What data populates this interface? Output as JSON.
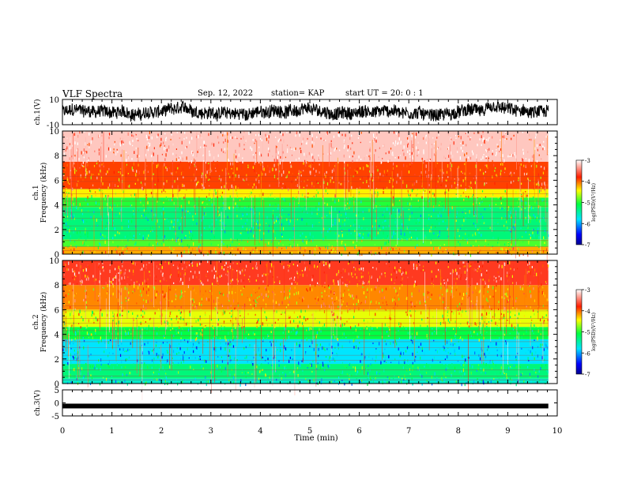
{
  "header": {
    "title": "VLF Spectra",
    "date": "Sep. 12, 2022",
    "station": "station= KAP",
    "start": "start UT =  20: 0  : 1"
  },
  "chart_data": {
    "type": "spectrogram",
    "x_axis": {
      "label": "Time (min)",
      "range": [
        0,
        10
      ],
      "ticks": [
        "0",
        "1",
        "2",
        "3",
        "4",
        "5",
        "6",
        "7",
        "8",
        "9",
        "10"
      ]
    },
    "panels": [
      {
        "kind": "waveform",
        "ylabel": "ch.1(V)",
        "ylim": [
          -10,
          10
        ],
        "tick_labels": [
          "10",
          "-10"
        ],
        "data_end_min": 9.82
      },
      {
        "kind": "spectrogram",
        "ylabel_channel": "ch.1",
        "ylabel": "Frequency (kHz)",
        "ylim": [
          0,
          10
        ],
        "tick_labels": [
          "0",
          "2",
          "4",
          "6",
          "8",
          "10"
        ],
        "data_end_min": 9.82,
        "colorbar": {
          "label": "log(PSD)(V²/Hz)",
          "range": [
            -7,
            -3
          ],
          "tick_labels": [
            "-3",
            "-4",
            "-5",
            "-6",
            "-7"
          ]
        },
        "bands_kHz_log_psd": [
          {
            "from": 0.0,
            "to": 0.6,
            "v": -4.2
          },
          {
            "from": 0.6,
            "to": 1.2,
            "v": -4.9
          },
          {
            "from": 1.2,
            "to": 3.8,
            "v": -5.3
          },
          {
            "from": 3.8,
            "to": 4.6,
            "v": -5.0
          },
          {
            "from": 4.6,
            "to": 5.3,
            "v": -4.4
          },
          {
            "from": 5.3,
            "to": 7.5,
            "v": -3.9
          },
          {
            "from": 7.5,
            "to": 10.0,
            "v": -3.2
          }
        ]
      },
      {
        "kind": "spectrogram",
        "ylabel_channel": "ch.2",
        "ylabel": "Frequency (kHz)",
        "ylim": [
          0,
          10
        ],
        "tick_labels": [
          "0",
          "2",
          "4",
          "6",
          "8",
          "10"
        ],
        "data_end_min": 9.82,
        "colorbar": {
          "label": "log(PSD)(V²/Hz)",
          "range": [
            -7,
            -3
          ],
          "tick_labels": [
            "-3",
            "-4",
            "-5",
            "-6",
            "-7"
          ]
        },
        "bands_kHz_log_psd": [
          {
            "from": 0.0,
            "to": 0.4,
            "v": -5.6
          },
          {
            "from": 0.4,
            "to": 1.6,
            "v": -5.3
          },
          {
            "from": 1.6,
            "to": 3.6,
            "v": -5.8
          },
          {
            "from": 3.6,
            "to": 4.6,
            "v": -5.1
          },
          {
            "from": 4.6,
            "to": 6.0,
            "v": -4.5
          },
          {
            "from": 6.0,
            "to": 8.0,
            "v": -4.1
          },
          {
            "from": 8.0,
            "to": 10.0,
            "v": -3.7
          }
        ]
      },
      {
        "kind": "waveform",
        "ylabel": "ch.3(V)",
        "ylim": [
          -5,
          5
        ],
        "tick_labels": [
          "5",
          "0",
          "-5"
        ],
        "data_end_min": 9.82,
        "constant_value": -1.2
      }
    ]
  }
}
